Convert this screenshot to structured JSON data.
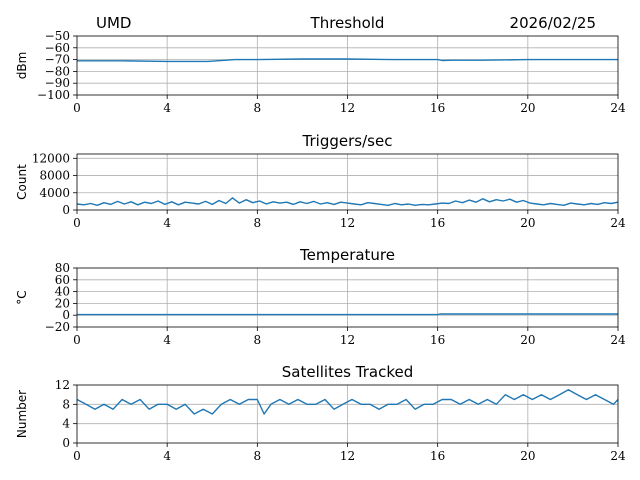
{
  "header": {
    "station": "UMD",
    "date": "2026/02/25"
  },
  "colors": {
    "series": "#1f77b4",
    "grid": "#b0b0b0"
  },
  "chart_data": [
    {
      "type": "line",
      "title": "Threshold",
      "ylabel": "dBm",
      "xlabel": "",
      "xlim": [
        0,
        24
      ],
      "ylim": [
        -100,
        -50
      ],
      "xticks": [
        0,
        4,
        8,
        12,
        16,
        20,
        24
      ],
      "yticks": [
        -100,
        -90,
        -80,
        -70,
        -60,
        -50
      ],
      "ytick_labels": [
        "−100",
        "−90",
        "−80",
        "−70",
        "−60",
        "−50"
      ],
      "grid": true,
      "series": [
        {
          "x": [
            0,
            2,
            4,
            5.8,
            6.2,
            7,
            8,
            10,
            12,
            14,
            16,
            16.2,
            16.6,
            18,
            20,
            22,
            24
          ],
          "y": [
            -71,
            -71,
            -71.5,
            -71.5,
            -71,
            -70,
            -70,
            -69.5,
            -69.5,
            -70,
            -70,
            -70.8,
            -70.5,
            -70.5,
            -70,
            -70,
            -70
          ]
        }
      ]
    },
    {
      "type": "line",
      "title": "Triggers/sec",
      "ylabel": "Count",
      "xlabel": "",
      "xlim": [
        0,
        24
      ],
      "ylim": [
        0,
        13000
      ],
      "xticks": [
        0,
        4,
        8,
        12,
        16,
        20,
        24
      ],
      "yticks": [
        0,
        4000,
        8000,
        12000
      ],
      "ytick_labels": [
        "0",
        "4000",
        "8000",
        "12000"
      ],
      "grid": true,
      "series": [
        {
          "x": [
            0,
            0.3,
            0.6,
            0.9,
            1.2,
            1.5,
            1.8,
            2.1,
            2.4,
            2.7,
            3.0,
            3.3,
            3.6,
            3.9,
            4.2,
            4.5,
            4.8,
            5.1,
            5.4,
            5.7,
            6.0,
            6.3,
            6.6,
            6.9,
            7.2,
            7.5,
            7.8,
            8.1,
            8.4,
            8.7,
            9.0,
            9.3,
            9.6,
            9.9,
            10.2,
            10.5,
            10.8,
            11.1,
            11.4,
            11.7,
            12.0,
            12.3,
            12.6,
            12.9,
            13.2,
            13.5,
            13.8,
            14.1,
            14.4,
            14.7,
            15.0,
            15.3,
            15.6,
            15.9,
            16.2,
            16.5,
            16.8,
            17.1,
            17.4,
            17.7,
            18.0,
            18.3,
            18.6,
            18.9,
            19.2,
            19.5,
            19.8,
            20.1,
            20.4,
            20.7,
            21.0,
            21.3,
            21.6,
            21.9,
            22.2,
            22.5,
            22.8,
            23.1,
            23.4,
            23.7,
            24.0
          ],
          "y": [
            1400,
            1200,
            1500,
            1100,
            1700,
            1300,
            2000,
            1400,
            1900,
            1200,
            1800,
            1500,
            2100,
            1300,
            1900,
            1200,
            1800,
            1600,
            1400,
            2000,
            1300,
            2200,
            1500,
            2800,
            1600,
            2400,
            1700,
            2100,
            1400,
            1900,
            1600,
            1800,
            1300,
            1900,
            1500,
            2000,
            1400,
            1700,
            1300,
            1800,
            1600,
            1400,
            1200,
            1700,
            1500,
            1300,
            1100,
            1500,
            1200,
            1400,
            1100,
            1300,
            1200,
            1400,
            1600,
            1500,
            2100,
            1700,
            2300,
            1800,
            2600,
            1900,
            2400,
            2100,
            2500,
            1800,
            2200,
            1600,
            1400,
            1200,
            1500,
            1300,
            1100,
            1600,
            1400,
            1200,
            1500,
            1300,
            1700,
            1500,
            1800
          ]
        }
      ]
    },
    {
      "type": "line",
      "title": "Temperature",
      "ylabel": "°C",
      "xlabel": "",
      "xlim": [
        0,
        24
      ],
      "ylim": [
        -20,
        80
      ],
      "xticks": [
        0,
        4,
        8,
        12,
        16,
        20,
        24
      ],
      "yticks": [
        -20,
        0,
        20,
        40,
        60,
        80
      ],
      "ytick_labels": [
        "−20",
        "0",
        "20",
        "40",
        "60",
        "80"
      ],
      "grid": true,
      "series": [
        {
          "x": [
            0,
            4,
            8,
            12,
            16,
            16.1,
            20,
            24
          ],
          "y": [
            1,
            1,
            1,
            1,
            1,
            2,
            2,
            2
          ]
        }
      ]
    },
    {
      "type": "line",
      "title": "Satellites Tracked",
      "ylabel": "Number",
      "xlabel": "",
      "xlim": [
        0,
        24
      ],
      "ylim": [
        0,
        12
      ],
      "xticks": [
        0,
        4,
        8,
        12,
        16,
        20,
        24
      ],
      "yticks": [
        0,
        4,
        8,
        12
      ],
      "ytick_labels": [
        "0",
        "4",
        "8",
        "12"
      ],
      "grid": true,
      "series": [
        {
          "x": [
            0,
            0.4,
            0.8,
            1.2,
            1.6,
            2.0,
            2.4,
            2.8,
            3.2,
            3.6,
            4.0,
            4.4,
            4.8,
            5.2,
            5.6,
            6.0,
            6.4,
            6.8,
            7.2,
            7.6,
            8.0,
            8.3,
            8.6,
            9.0,
            9.4,
            9.8,
            10.2,
            10.6,
            11.0,
            11.4,
            11.8,
            12.2,
            12.6,
            13.0,
            13.4,
            13.8,
            14.2,
            14.6,
            15.0,
            15.4,
            15.8,
            16.2,
            16.6,
            17.0,
            17.4,
            17.8,
            18.2,
            18.6,
            19.0,
            19.4,
            19.8,
            20.2,
            20.6,
            21.0,
            21.4,
            21.8,
            22.2,
            22.6,
            23.0,
            23.4,
            23.8,
            24.0
          ],
          "y": [
            9,
            8,
            7,
            8,
            7,
            9,
            8,
            9,
            7,
            8,
            8,
            7,
            8,
            6,
            7,
            6,
            8,
            9,
            8,
            9,
            9,
            6,
            8,
            9,
            8,
            9,
            8,
            8,
            9,
            7,
            8,
            9,
            8,
            8,
            7,
            8,
            8,
            9,
            7,
            8,
            8,
            9,
            9,
            8,
            9,
            8,
            9,
            8,
            10,
            9,
            10,
            9,
            10,
            9,
            10,
            11,
            10,
            9,
            10,
            9,
            8,
            9
          ]
        }
      ]
    }
  ]
}
